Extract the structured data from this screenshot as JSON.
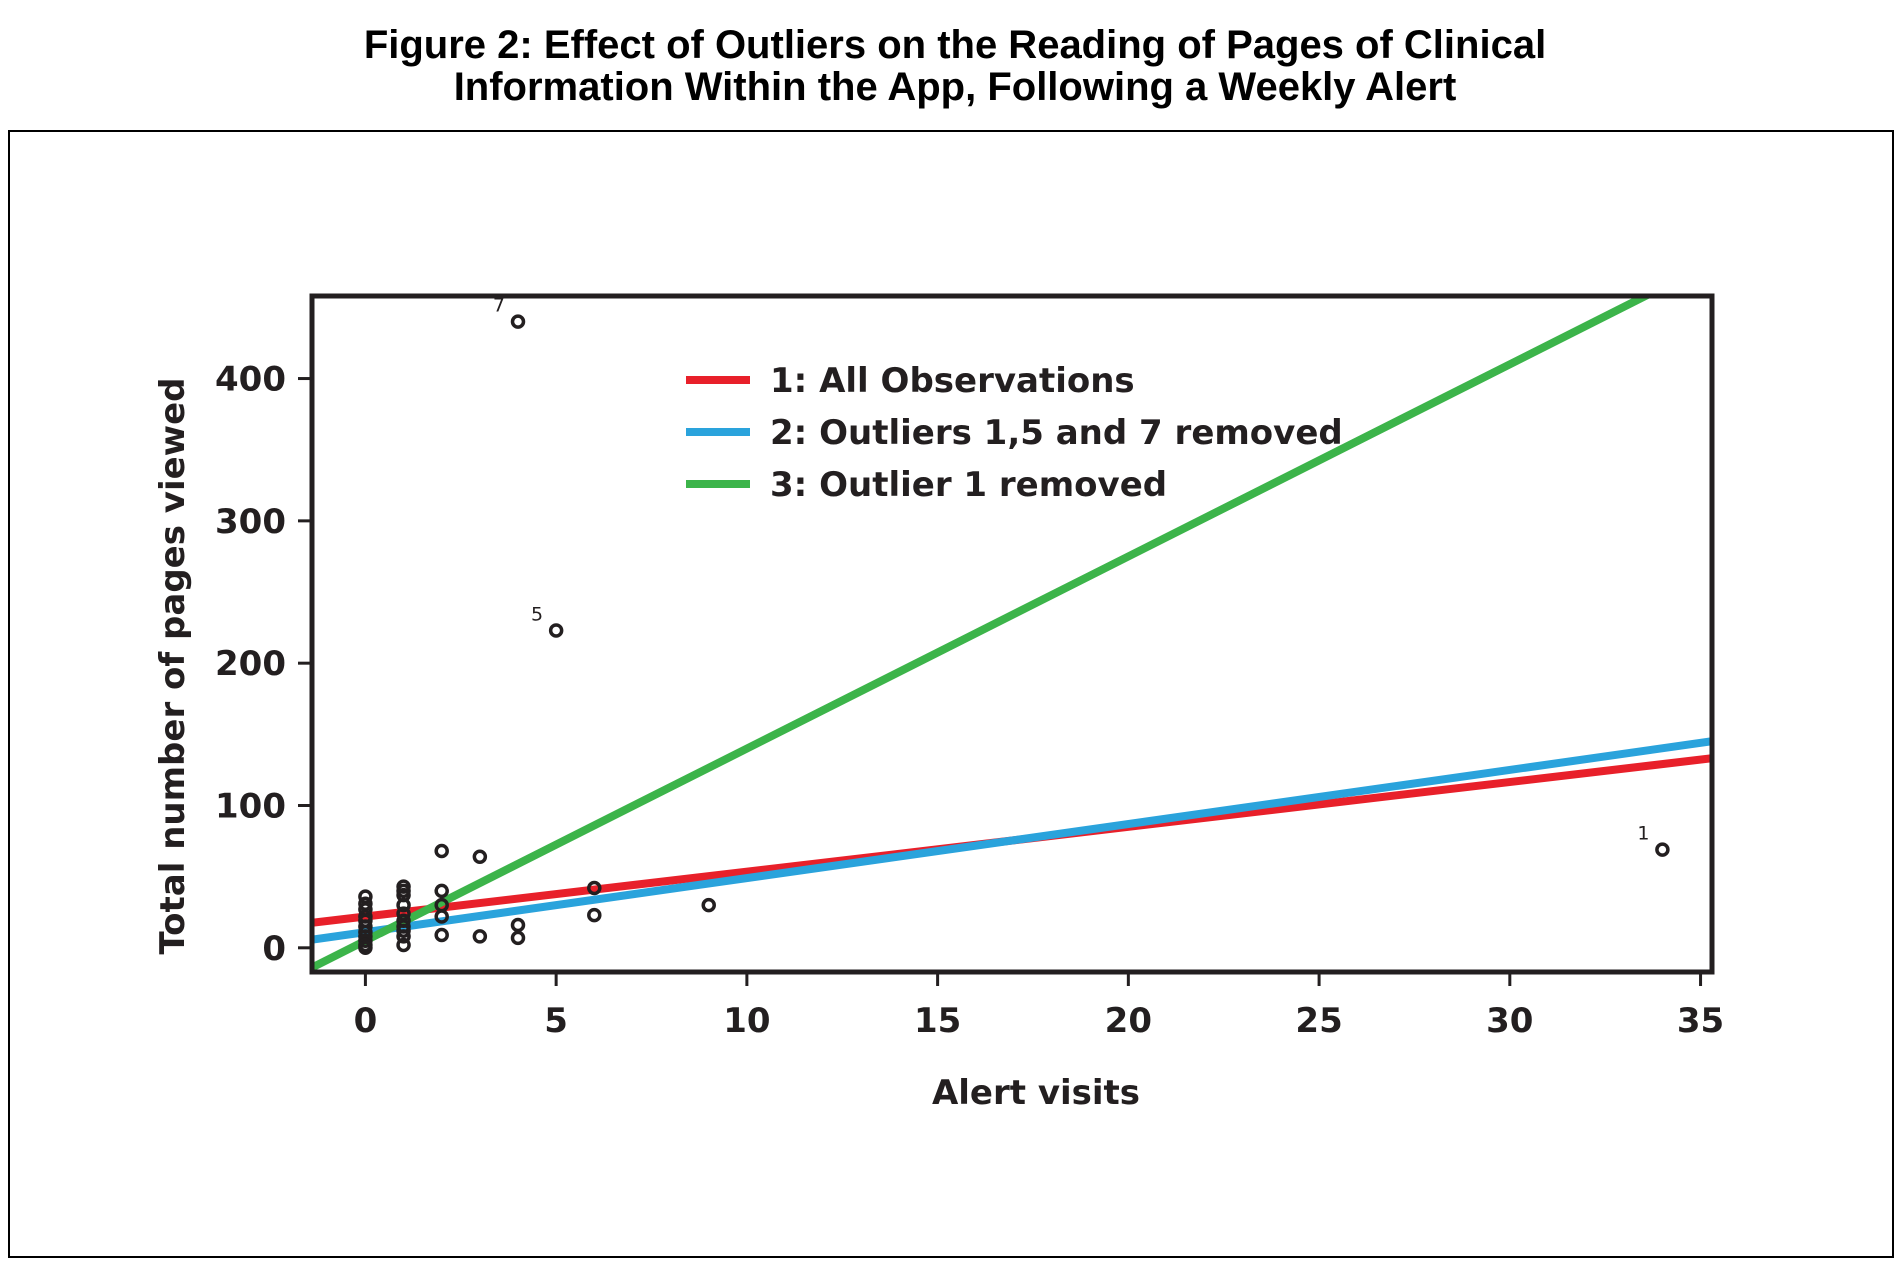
{
  "figure": {
    "title_line1": "Figure 2: Effect of Outliers on the Reading of Pages of Clinical",
    "title_line2": "Information Within the App, Following a Weekly Alert"
  },
  "chart_data": {
    "type": "scatter",
    "xlabel": "Alert visits",
    "ylabel": "Total number of pages viewed",
    "xlim": [
      -1.4,
      35.3
    ],
    "ylim": [
      -17,
      458
    ],
    "xticks": [
      0,
      5,
      10,
      15,
      20,
      25,
      30,
      35
    ],
    "yticks": [
      0,
      100,
      200,
      300,
      400
    ],
    "grid": false,
    "legend_position": "top-center",
    "points": [
      {
        "x": 0,
        "y": 36
      },
      {
        "x": 0,
        "y": 31
      },
      {
        "x": 0,
        "y": 27
      },
      {
        "x": 0,
        "y": 22
      },
      {
        "x": 0,
        "y": 19
      },
      {
        "x": 0,
        "y": 15
      },
      {
        "x": 0,
        "y": 11
      },
      {
        "x": 0,
        "y": 8
      },
      {
        "x": 0,
        "y": 5
      },
      {
        "x": 0,
        "y": 2
      },
      {
        "x": 0,
        "y": 0
      },
      {
        "x": 1,
        "y": 43
      },
      {
        "x": 1,
        "y": 40
      },
      {
        "x": 1,
        "y": 37
      },
      {
        "x": 1,
        "y": 30
      },
      {
        "x": 1,
        "y": 24
      },
      {
        "x": 1,
        "y": 19
      },
      {
        "x": 1,
        "y": 15
      },
      {
        "x": 1,
        "y": 12
      },
      {
        "x": 1,
        "y": 8
      },
      {
        "x": 1,
        "y": 2
      },
      {
        "x": 2,
        "y": 68
      },
      {
        "x": 2,
        "y": 40
      },
      {
        "x": 2,
        "y": 30
      },
      {
        "x": 2,
        "y": 22
      },
      {
        "x": 2,
        "y": 9
      },
      {
        "x": 3,
        "y": 64
      },
      {
        "x": 3,
        "y": 8
      },
      {
        "x": 4,
        "y": 440,
        "label": "7"
      },
      {
        "x": 4,
        "y": 16
      },
      {
        "x": 4,
        "y": 7
      },
      {
        "x": 5,
        "y": 223,
        "label": "5"
      },
      {
        "x": 6,
        "y": 42
      },
      {
        "x": 6,
        "y": 23
      },
      {
        "x": 9,
        "y": 30
      },
      {
        "x": 34,
        "y": 69,
        "label": "1"
      }
    ],
    "series": [
      {
        "name": "1: All Observations",
        "color": "#e8202a",
        "intercept": 22,
        "slope": 3.15
      },
      {
        "name": "2: Outliers 1,5 and 7 removed",
        "color": "#2aa3dc",
        "intercept": 11,
        "slope": 3.8
      },
      {
        "name": "3: Outlier 1 removed",
        "color": "#3cb44a",
        "intercept": 5,
        "slope": 13.5
      }
    ]
  }
}
